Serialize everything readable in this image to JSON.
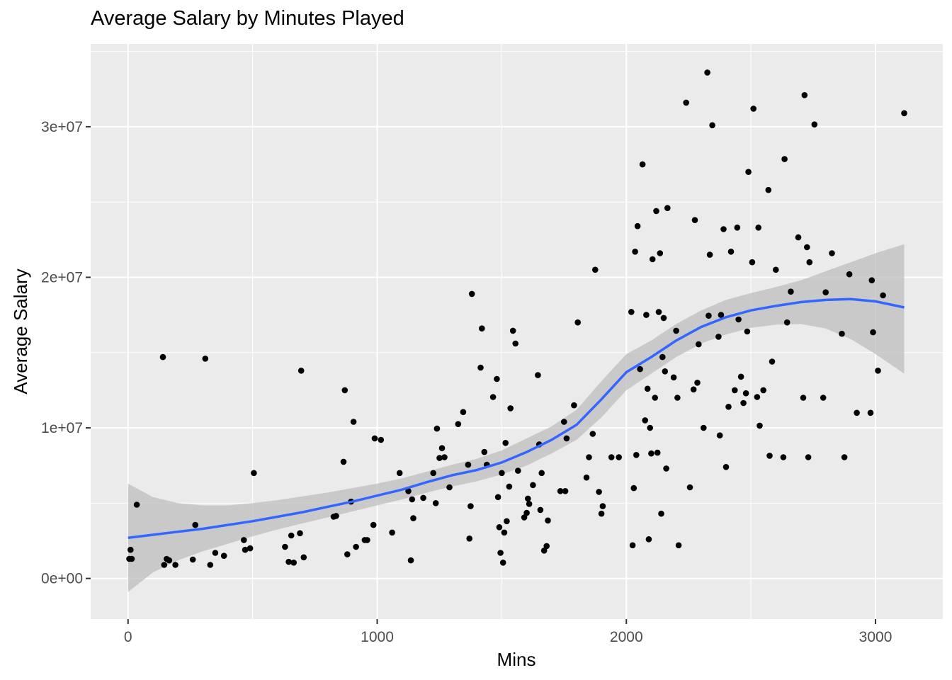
{
  "chart_data": {
    "type": "scatter",
    "title": "Average Salary by Minutes Played",
    "xlabel": "Mins",
    "ylabel": "Average Salary",
    "xlim": [
      -150,
      3270
    ],
    "ylim": [
      -2700000,
      35500000
    ],
    "x_ticks": [
      0,
      1000,
      2000,
      3000
    ],
    "x_tick_labels": [
      "0",
      "1000",
      "2000",
      "3000"
    ],
    "y_ticks": [
      0,
      10000000,
      20000000,
      30000000
    ],
    "y_tick_labels": [
      "0e+00",
      "1e+07",
      "2e+07",
      "3e+07"
    ],
    "grid": true,
    "colors": {
      "panel": "#EBEBEB",
      "grid": "#FFFFFF",
      "points": "#000000",
      "smooth_line": "#3366FF",
      "confidence_band": "#BEBEBE"
    },
    "points": [
      [
        5,
        1300000
      ],
      [
        10,
        1900000
      ],
      [
        15,
        1300000
      ],
      [
        35,
        4900000
      ],
      [
        140,
        14700000
      ],
      [
        145,
        900000
      ],
      [
        155,
        1300000
      ],
      [
        165,
        1200000
      ],
      [
        190,
        900000
      ],
      [
        260,
        1250000
      ],
      [
        270,
        3550000
      ],
      [
        310,
        14600000
      ],
      [
        330,
        900000
      ],
      [
        350,
        1700000
      ],
      [
        385,
        1500000
      ],
      [
        465,
        2550000
      ],
      [
        470,
        1900000
      ],
      [
        490,
        2000000
      ],
      [
        505,
        7000000
      ],
      [
        630,
        2100000
      ],
      [
        645,
        1100000
      ],
      [
        655,
        2850000
      ],
      [
        665,
        1050000
      ],
      [
        690,
        3000000
      ],
      [
        695,
        13800000
      ],
      [
        705,
        1400000
      ],
      [
        825,
        4100000
      ],
      [
        835,
        4150000
      ],
      [
        865,
        7750000
      ],
      [
        870,
        12500000
      ],
      [
        880,
        1600000
      ],
      [
        895,
        5100000
      ],
      [
        905,
        10400000
      ],
      [
        915,
        2100000
      ],
      [
        950,
        2550000
      ],
      [
        960,
        2550000
      ],
      [
        985,
        3550000
      ],
      [
        990,
        9300000
      ],
      [
        1015,
        9200000
      ],
      [
        1060,
        3050000
      ],
      [
        1090,
        7000000
      ],
      [
        1125,
        5800000
      ],
      [
        1135,
        1200000
      ],
      [
        1140,
        5250000
      ],
      [
        1145,
        4000000
      ],
      [
        1185,
        5350000
      ],
      [
        1225,
        7000000
      ],
      [
        1235,
        5000000
      ],
      [
        1240,
        9950000
      ],
      [
        1250,
        8000000
      ],
      [
        1260,
        8650000
      ],
      [
        1270,
        8050000
      ],
      [
        1290,
        6050000
      ],
      [
        1325,
        10250000
      ],
      [
        1345,
        11050000
      ],
      [
        1365,
        7550000
      ],
      [
        1370,
        2650000
      ],
      [
        1375,
        4800000
      ],
      [
        1380,
        18900000
      ],
      [
        1415,
        14000000
      ],
      [
        1420,
        16600000
      ],
      [
        1430,
        8400000
      ],
      [
        1440,
        7550000
      ],
      [
        1465,
        12050000
      ],
      [
        1480,
        13250000
      ],
      [
        1485,
        5400000
      ],
      [
        1490,
        3400000
      ],
      [
        1495,
        1700000
      ],
      [
        1500,
        7000000
      ],
      [
        1505,
        1050000
      ],
      [
        1510,
        3050000
      ],
      [
        1515,
        9000000
      ],
      [
        1520,
        3800000
      ],
      [
        1530,
        6100000
      ],
      [
        1535,
        11300000
      ],
      [
        1545,
        16450000
      ],
      [
        1555,
        15600000
      ],
      [
        1565,
        7150000
      ],
      [
        1590,
        4050000
      ],
      [
        1600,
        4350000
      ],
      [
        1605,
        5300000
      ],
      [
        1610,
        4950000
      ],
      [
        1625,
        6200000
      ],
      [
        1645,
        13500000
      ],
      [
        1650,
        8900000
      ],
      [
        1655,
        4550000
      ],
      [
        1660,
        7000000
      ],
      [
        1670,
        1850000
      ],
      [
        1680,
        2150000
      ],
      [
        1685,
        3850000
      ],
      [
        1735,
        5800000
      ],
      [
        1750,
        10400000
      ],
      [
        1755,
        5800000
      ],
      [
        1760,
        9300000
      ],
      [
        1790,
        11500000
      ],
      [
        1805,
        17000000
      ],
      [
        1840,
        6700000
      ],
      [
        1850,
        8050000
      ],
      [
        1865,
        9600000
      ],
      [
        1875,
        20500000
      ],
      [
        1890,
        5750000
      ],
      [
        1900,
        4300000
      ],
      [
        1905,
        4800000
      ],
      [
        1940,
        8050000
      ],
      [
        1970,
        8050000
      ],
      [
        2020,
        17700000
      ],
      [
        2025,
        2200000
      ],
      [
        2030,
        6000000
      ],
      [
        2035,
        21700000
      ],
      [
        2040,
        8200000
      ],
      [
        2045,
        23400000
      ],
      [
        2055,
        13900000
      ],
      [
        2065,
        27500000
      ],
      [
        2075,
        10500000
      ],
      [
        2080,
        17500000
      ],
      [
        2085,
        12600000
      ],
      [
        2090,
        2600000
      ],
      [
        2095,
        10000000
      ],
      [
        2100,
        8300000
      ],
      [
        2105,
        21200000
      ],
      [
        2115,
        12000000
      ],
      [
        2120,
        24400000
      ],
      [
        2125,
        8350000
      ],
      [
        2130,
        17700000
      ],
      [
        2135,
        21600000
      ],
      [
        2140,
        4300000
      ],
      [
        2145,
        14700000
      ],
      [
        2150,
        17300000
      ],
      [
        2155,
        13750000
      ],
      [
        2160,
        7300000
      ],
      [
        2165,
        24600000
      ],
      [
        2190,
        13350000
      ],
      [
        2200,
        16450000
      ],
      [
        2205,
        12000000
      ],
      [
        2210,
        2200000
      ],
      [
        2240,
        31600000
      ],
      [
        2255,
        6050000
      ],
      [
        2270,
        12550000
      ],
      [
        2275,
        23800000
      ],
      [
        2285,
        13000000
      ],
      [
        2290,
        15550000
      ],
      [
        2310,
        10000000
      ],
      [
        2325,
        33600000
      ],
      [
        2330,
        17450000
      ],
      [
        2335,
        21500000
      ],
      [
        2345,
        30100000
      ],
      [
        2370,
        16050000
      ],
      [
        2375,
        9500000
      ],
      [
        2380,
        17500000
      ],
      [
        2390,
        23200000
      ],
      [
        2400,
        7400000
      ],
      [
        2410,
        11400000
      ],
      [
        2420,
        21700000
      ],
      [
        2435,
        12500000
      ],
      [
        2445,
        23300000
      ],
      [
        2450,
        17200000
      ],
      [
        2460,
        13400000
      ],
      [
        2470,
        11650000
      ],
      [
        2480,
        12300000
      ],
      [
        2485,
        16400000
      ],
      [
        2490,
        27000000
      ],
      [
        2505,
        21000000
      ],
      [
        2510,
        31200000
      ],
      [
        2525,
        12050000
      ],
      [
        2530,
        23300000
      ],
      [
        2535,
        10150000
      ],
      [
        2550,
        12500000
      ],
      [
        2570,
        25800000
      ],
      [
        2575,
        8150000
      ],
      [
        2585,
        14400000
      ],
      [
        2600,
        20500000
      ],
      [
        2630,
        8050000
      ],
      [
        2635,
        27850000
      ],
      [
        2645,
        17000000
      ],
      [
        2660,
        19050000
      ],
      [
        2690,
        22650000
      ],
      [
        2710,
        12000000
      ],
      [
        2715,
        32100000
      ],
      [
        2725,
        22000000
      ],
      [
        2730,
        8050000
      ],
      [
        2735,
        21000000
      ],
      [
        2755,
        30150000
      ],
      [
        2790,
        12000000
      ],
      [
        2800,
        19000000
      ],
      [
        2825,
        21600000
      ],
      [
        2865,
        16250000
      ],
      [
        2875,
        8050000
      ],
      [
        2895,
        20200000
      ],
      [
        2925,
        11000000
      ],
      [
        2980,
        11000000
      ],
      [
        2985,
        19800000
      ],
      [
        2990,
        16350000
      ],
      [
        3010,
        13800000
      ],
      [
        3030,
        18800000
      ],
      [
        3115,
        30900000
      ]
    ],
    "smooth": {
      "x": [
        0,
        100,
        200,
        300,
        400,
        500,
        600,
        700,
        800,
        900,
        1000,
        1100,
        1200,
        1300,
        1400,
        1500,
        1600,
        1700,
        1800,
        1900,
        2000,
        2100,
        2200,
        2300,
        2400,
        2500,
        2600,
        2700,
        2800,
        2900,
        3000,
        3115
      ],
      "y": [
        2700000,
        2900000,
        3100000,
        3300000,
        3550000,
        3800000,
        4100000,
        4400000,
        4750000,
        5100000,
        5500000,
        5900000,
        6400000,
        6850000,
        7200000,
        7700000,
        8400000,
        9200000,
        10200000,
        11900000,
        13700000,
        14700000,
        15800000,
        16700000,
        17350000,
        17800000,
        18100000,
        18350000,
        18500000,
        18550000,
        18400000,
        18000000
      ],
      "lower": [
        -900000,
        400000,
        1200000,
        1800000,
        2300000,
        2800000,
        3250000,
        3650000,
        4050000,
        4450000,
        4850000,
        5250000,
        5700000,
        6100000,
        6450000,
        6900000,
        7500000,
        8300000,
        9200000,
        10700000,
        12500000,
        13600000,
        14700000,
        15600000,
        16200000,
        16650000,
        16850000,
        16900000,
        16600000,
        15900000,
        14900000,
        13600000
      ],
      "upper": [
        6300000,
        5400000,
        5000000,
        4850000,
        4850000,
        5000000,
        5200000,
        5450000,
        5700000,
        6000000,
        6300000,
        6650000,
        7100000,
        7550000,
        7950000,
        8500000,
        9300000,
        10100000,
        11200000,
        13100000,
        14900000,
        15800000,
        16900000,
        17800000,
        18500000,
        18950000,
        19350000,
        19800000,
        20400000,
        21000000,
        21600000,
        22200000
      ]
    }
  }
}
